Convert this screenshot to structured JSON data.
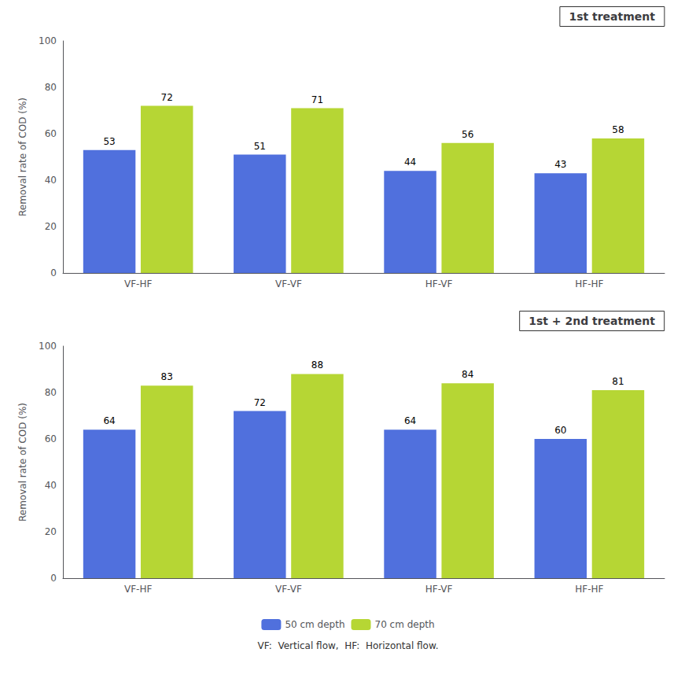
{
  "chart_data": [
    {
      "type": "bar",
      "title": "1st treatment",
      "categories": [
        "VF-HF",
        "VF-VF",
        "HF-VF",
        "HF-HF"
      ],
      "series": [
        {
          "name": "50 cm depth",
          "values": [
            53,
            51,
            44,
            43
          ]
        },
        {
          "name": "70 cm depth",
          "values": [
            72,
            71,
            56,
            58
          ]
        }
      ],
      "ylabel": "Removal rate of COD (%)",
      "ylim": [
        0,
        100
      ],
      "yticks": [
        0,
        20,
        40,
        60,
        80,
        100
      ],
      "data_labels": true
    },
    {
      "type": "bar",
      "title": "1st + 2nd treatment",
      "categories": [
        "VF-HF",
        "VF-VF",
        "HF-VF",
        "HF-HF"
      ],
      "series": [
        {
          "name": "50 cm depth",
          "values": [
            64,
            72,
            64,
            60
          ]
        },
        {
          "name": "70 cm depth",
          "values": [
            83,
            88,
            84,
            81
          ]
        }
      ],
      "ylabel": "Removal rate of COD (%)",
      "ylim": [
        0,
        100
      ],
      "yticks": [
        0,
        20,
        40,
        60,
        80,
        100
      ],
      "data_labels": true,
      "legend": "bottom",
      "annotations": [
        "VF:  Vertical flow,  HF:  Horizontal flow."
      ]
    }
  ]
}
